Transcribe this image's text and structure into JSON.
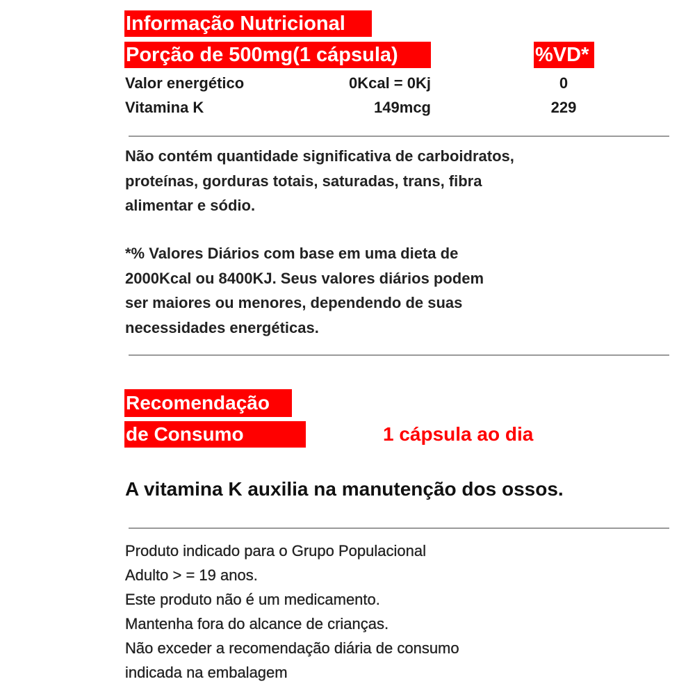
{
  "colors": {
    "accent": "#ff0000",
    "text": "#222222"
  },
  "header": {
    "title": "Informação Nutricional",
    "portion": "Porção de 500mg(1 cápsula)",
    "vd": "%VD*"
  },
  "rows": [
    {
      "name": "Valor energético",
      "amount": "0Kcal = 0Kj",
      "vd": "0"
    },
    {
      "name": "Vitamina K",
      "amount": "149mcg",
      "vd": "229"
    }
  ],
  "notes": {
    "not_significant": [
      "Não contém quantidade significativa de carboidratos,",
      "proteínas, gorduras totais, saturadas, trans, fibra",
      "alimentar e sódio."
    ],
    "daily_values": [
      "*% Valores Diários com base em uma dieta de",
      "2000Kcal ou 8400KJ. Seus valores diários podem",
      "ser maiores ou menores, dependendo de suas",
      "necessidades energéticas."
    ]
  },
  "recommendation": {
    "label_line1": "Recomendação",
    "label_line2": "de Consumo",
    "value": "1 cápsula ao dia"
  },
  "claim": "A vitamina K auxilia na manutenção dos ossos.",
  "footer": [
    "Produto indicado para o Grupo Populacional",
    "Adulto > = 19 anos.",
    "Este produto não é um medicamento.",
    "Mantenha fora do alcance de crianças.",
    "Não exceder a recomendação diária de consumo",
    "indicada na embalagem"
  ]
}
